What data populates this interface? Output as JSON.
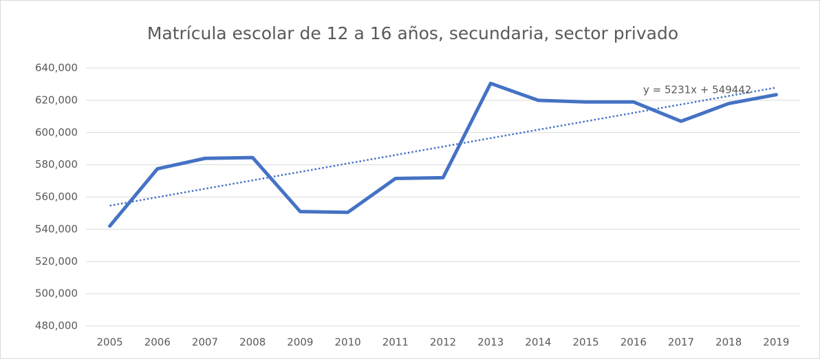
{
  "chart_data": {
    "type": "line",
    "title": "Matrícula escolar de 12 a 16 años, secundaria, sector privado",
    "categories": [
      "2005",
      "2006",
      "2007",
      "2008",
      "2009",
      "2010",
      "2011",
      "2012",
      "2013",
      "2014",
      "2015",
      "2016",
      "2017",
      "2018",
      "2019"
    ],
    "series": [
      {
        "color": "#4472c4",
        "values": [
          542000,
          577500,
          584000,
          584500,
          551000,
          550500,
          571500,
          572000,
          630500,
          620000,
          619000,
          619000,
          607000,
          618000,
          623500
        ]
      }
    ],
    "trendline": {
      "slope": 5231,
      "intercept": 549442,
      "color": "#4472c4",
      "style": "dotted",
      "label": "y = 5231x + 549442"
    },
    "ylim": [
      480000,
      640000
    ],
    "yticks": [
      {
        "value": 480000,
        "label": "480,000"
      },
      {
        "value": 500000,
        "label": "500,000"
      },
      {
        "value": 520000,
        "label": "520,000"
      },
      {
        "value": 540000,
        "label": "540,000"
      },
      {
        "value": 560000,
        "label": "560,000"
      },
      {
        "value": 580000,
        "label": "580,000"
      },
      {
        "value": 600000,
        "label": "600,000"
      },
      {
        "value": 620000,
        "label": "620,000"
      },
      {
        "value": 640000,
        "label": "640,000"
      }
    ],
    "grid": true
  }
}
